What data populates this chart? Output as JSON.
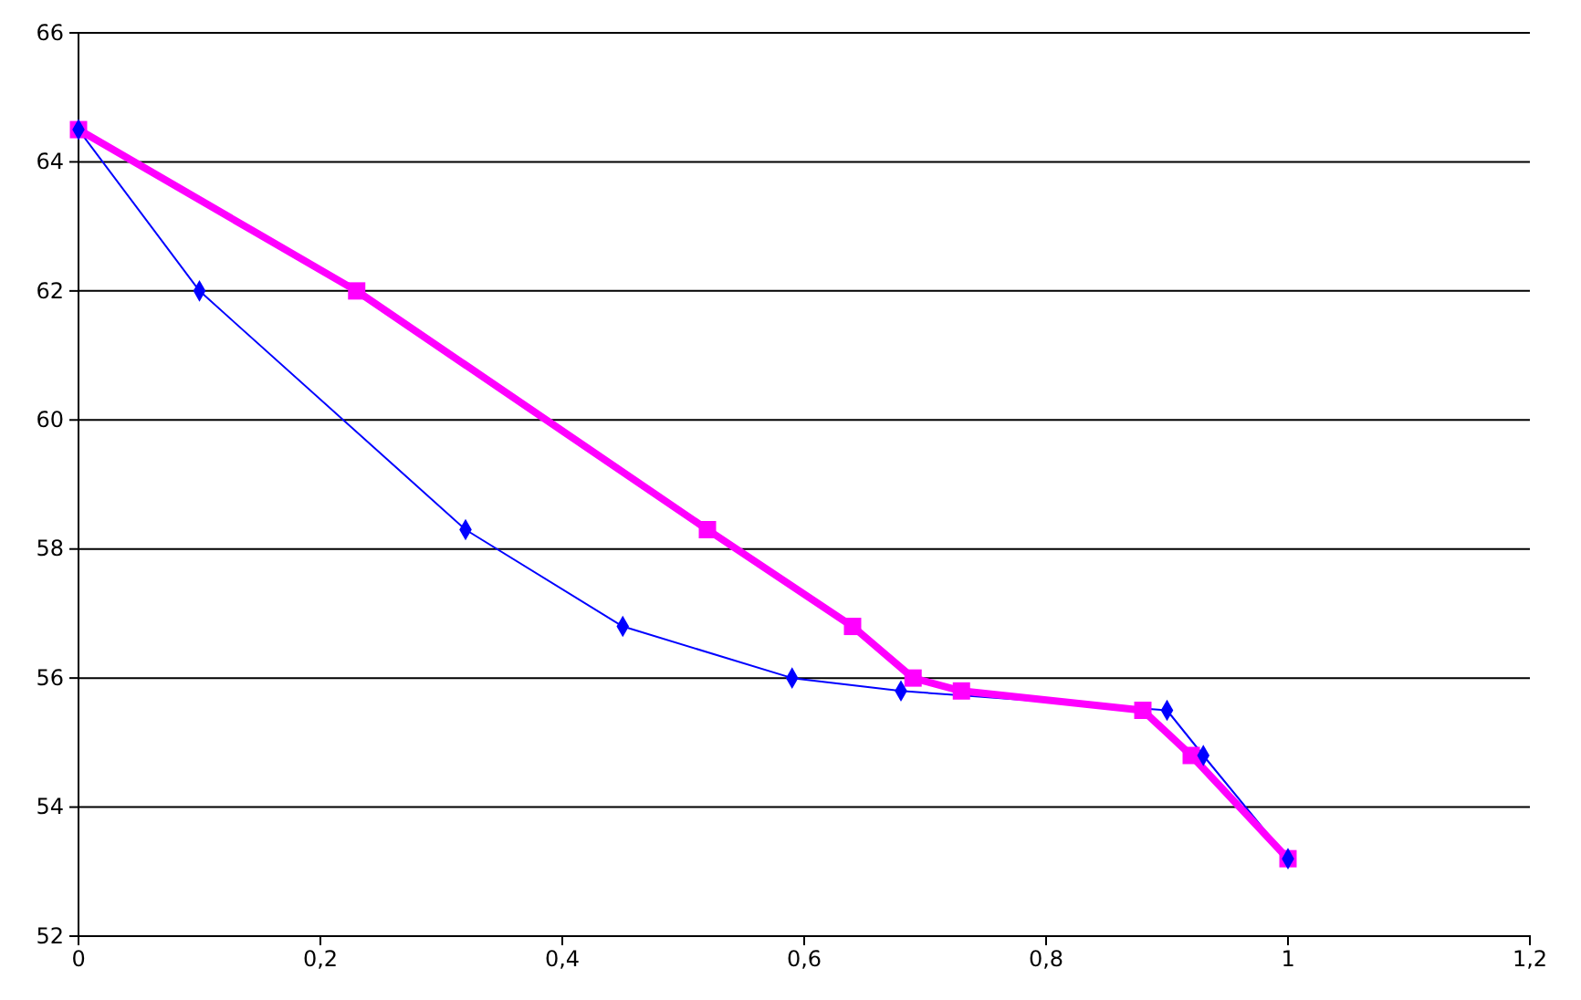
{
  "chart_data": {
    "type": "line",
    "grid": "y",
    "xlim": [
      0,
      1.2
    ],
    "xticks": [
      0,
      {
        "value": 0.2,
        "label": "0,2"
      },
      {
        "value": 0.4,
        "label": "0,4"
      },
      {
        "value": 0.6,
        "label": "0,6"
      },
      {
        "value": 0.8,
        "label": "0,8"
      },
      1,
      {
        "value": 1.2,
        "label": "1,2"
      }
    ],
    "ylim": [
      52,
      66
    ],
    "yticks": [
      52,
      54,
      56,
      58,
      60,
      62,
      64,
      66
    ],
    "series": [
      {
        "color": "#0000ff",
        "marker": "diamond",
        "line_style": "solid",
        "x": [
          0,
          0.1,
          0.32,
          0.45,
          0.59,
          0.68,
          0.9,
          0.93,
          1
        ],
        "values": [
          64.5,
          62,
          58.3,
          56.8,
          56.0,
          55.8,
          55.5,
          54.8,
          53.2
        ]
      },
      {
        "color": "#ff00ff",
        "marker": "square",
        "line_style": "solid",
        "x": [
          0,
          0.23,
          0.52,
          0.64,
          0.69,
          0.73,
          0.88,
          0.92,
          1
        ],
        "values": [
          64.5,
          62,
          58.3,
          56.8,
          56.0,
          55.8,
          55.5,
          54.8,
          53.2
        ]
      }
    ]
  }
}
